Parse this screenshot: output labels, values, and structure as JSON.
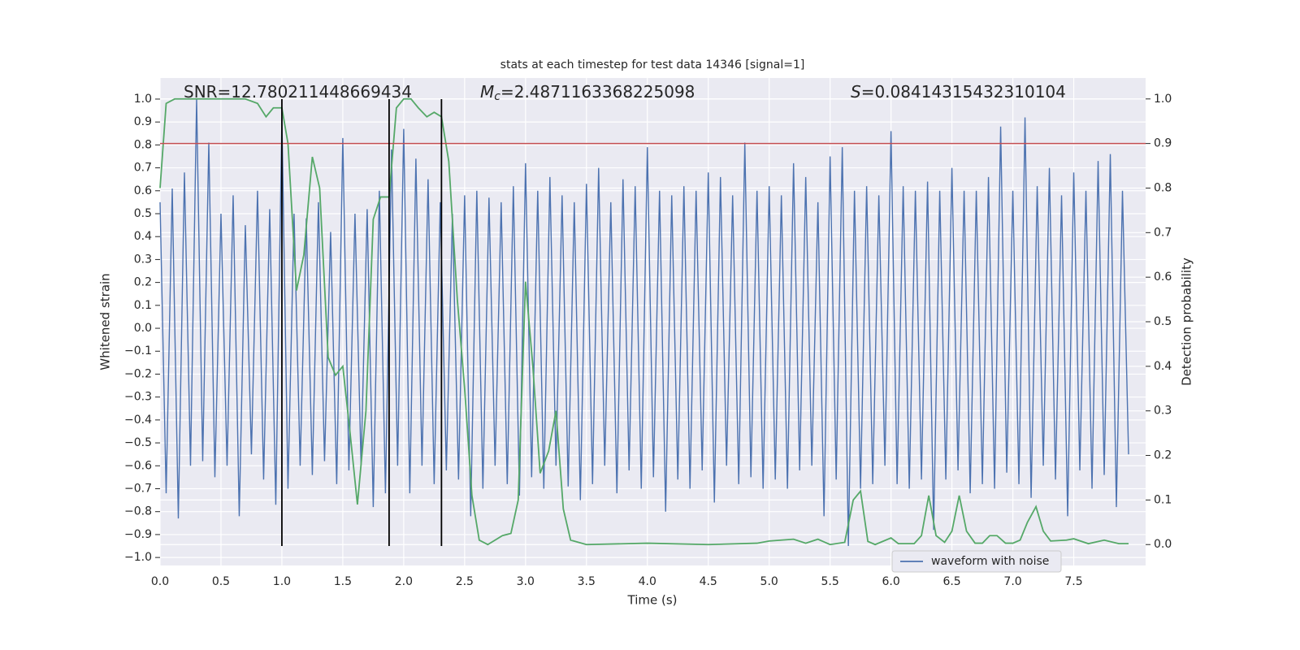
{
  "chart_data": {
    "type": "line",
    "title": "stats at each timestep for test data 14346 [signal=1]",
    "xlabel": "Time (s)",
    "ylabel": "Whitened strain",
    "y2label": "Detection probability",
    "xlim": [
      0,
      8.09
    ],
    "ylim": [
      -1.035,
      1.092
    ],
    "y2lim": [
      -0.047,
      1.047
    ],
    "xticks": [
      {
        "value": 0,
        "label": "0.0"
      },
      0.5,
      {
        "value": 1,
        "label": "1.0"
      },
      1.5,
      {
        "value": 2,
        "label": "2.0"
      },
      2.5,
      {
        "value": 3,
        "label": "3.0"
      },
      3.5,
      {
        "value": 4,
        "label": "4.0"
      },
      4.5,
      {
        "value": 5,
        "label": "5.0"
      },
      5.5,
      {
        "value": 6,
        "label": "6.0"
      },
      6.5,
      {
        "value": 7,
        "label": "7.0"
      },
      7.5
    ],
    "yticks": [
      {
        "value": -1,
        "label": "−1.0"
      },
      {
        "value": -0.9,
        "label": "−0.9"
      },
      {
        "value": -0.8,
        "label": "−0.8"
      },
      {
        "value": -0.7,
        "label": "−0.7"
      },
      {
        "value": -0.6,
        "label": "−0.6"
      },
      {
        "value": -0.5,
        "label": "−0.5"
      },
      {
        "value": -0.4,
        "label": "−0.4"
      },
      {
        "value": -0.3,
        "label": "−0.3"
      },
      {
        "value": -0.2,
        "label": "−0.2"
      },
      {
        "value": -0.1,
        "label": "−0.1"
      },
      {
        "value": 0,
        "label": "0.0"
      },
      0.1,
      0.2,
      0.3,
      0.4,
      0.5,
      0.6,
      0.7,
      0.8,
      0.9,
      {
        "value": 1,
        "label": "1.0"
      }
    ],
    "y2ticks": [
      {
        "value": 0,
        "label": "0.0"
      },
      0.1,
      0.2,
      0.3,
      0.4,
      0.5,
      0.6,
      0.7,
      0.8,
      0.9,
      {
        "value": 1,
        "label": "1.0"
      }
    ],
    "grid": true,
    "legend": "lower right",
    "annotations": [
      {
        "text": "SNR=12.780211448669434"
      },
      {
        "symbol": "M",
        "subscript": "c",
        "text": "=2.4871163368225098"
      },
      {
        "symbol": "S",
        "text": "=0.08414315432310104"
      }
    ],
    "series": [
      {
        "name": "waveform with noise",
        "color": "#4c72b0",
        "x": [
          0,
          0.05,
          0.1,
          0.15,
          0.2,
          0.25,
          0.3,
          0.35,
          0.4,
          0.45,
          0.5,
          0.55,
          0.6,
          0.65,
          0.7,
          0.75,
          0.8,
          0.85,
          0.9,
          0.95,
          1,
          1.05,
          1.1,
          1.15,
          1.2,
          1.25,
          1.3,
          1.35,
          1.4,
          1.45,
          1.5,
          1.55,
          1.6,
          1.65,
          1.7,
          1.75,
          1.8,
          1.85,
          1.9,
          1.95,
          2,
          2.05,
          2.1,
          2.15,
          2.2,
          2.25,
          2.3,
          2.35,
          2.4,
          2.45,
          2.5,
          2.55,
          2.6,
          2.65,
          2.7,
          2.75,
          2.8,
          2.85,
          2.9,
          2.95,
          3,
          3.05,
          3.1,
          3.15,
          3.2,
          3.25,
          3.3,
          3.35,
          3.4,
          3.45,
          3.5,
          3.55,
          3.6,
          3.65,
          3.7,
          3.75,
          3.8,
          3.85,
          3.9,
          3.95,
          4,
          4.05,
          4.1,
          4.15,
          4.2,
          4.25,
          4.3,
          4.35,
          4.4,
          4.45,
          4.5,
          4.55,
          4.6,
          4.65,
          4.7,
          4.75,
          4.8,
          4.85,
          4.9,
          4.95,
          5,
          5.05,
          5.1,
          5.15,
          5.2,
          5.25,
          5.3,
          5.35,
          5.4,
          5.45,
          5.5,
          5.55,
          5.6,
          5.65,
          5.7,
          5.75,
          5.8,
          5.85,
          5.9,
          5.95,
          6,
          6.05,
          6.1,
          6.15,
          6.2,
          6.25,
          6.3,
          6.35,
          6.4,
          6.45,
          6.5,
          6.55,
          6.6,
          6.65,
          6.7,
          6.75,
          6.8,
          6.85,
          6.9,
          6.95,
          7,
          7.05,
          7.1,
          7.15,
          7.2,
          7.25,
          7.3,
          7.35,
          7.4,
          7.45,
          7.5,
          7.55,
          7.6,
          7.65,
          7.7,
          7.75,
          7.8,
          7.85,
          7.9,
          7.95
        ],
        "values": [
          0.55,
          -0.72,
          0.61,
          -0.83,
          0.68,
          -0.6,
          1.0,
          -0.58,
          0.81,
          -0.65,
          0.5,
          -0.6,
          0.58,
          -0.82,
          0.45,
          -0.55,
          0.6,
          -0.66,
          0.52,
          -0.77,
          0.92,
          -0.7,
          0.5,
          -0.6,
          0.48,
          -0.64,
          0.55,
          -0.58,
          0.42,
          -0.68,
          0.83,
          -0.62,
          0.5,
          -0.6,
          0.52,
          -0.78,
          0.6,
          -0.72,
          0.78,
          -0.6,
          0.87,
          -0.72,
          0.74,
          -0.6,
          0.65,
          -0.68,
          0.55,
          -0.62,
          0.5,
          -0.66,
          0.58,
          -0.82,
          0.6,
          -0.7,
          0.57,
          -0.6,
          0.55,
          -0.68,
          0.62,
          -0.73,
          0.72,
          -0.65,
          0.6,
          -0.7,
          0.66,
          -0.6,
          0.58,
          -0.69,
          0.55,
          -0.75,
          0.63,
          -0.68,
          0.7,
          -0.6,
          0.55,
          -0.72,
          0.65,
          -0.62,
          0.62,
          -0.7,
          0.79,
          -0.65,
          0.6,
          -0.8,
          0.58,
          -0.66,
          0.62,
          -0.7,
          0.6,
          -0.62,
          0.68,
          -0.76,
          0.66,
          -0.6,
          0.58,
          -0.68,
          0.81,
          -0.65,
          0.6,
          -0.7,
          0.62,
          -0.66,
          0.58,
          -0.7,
          0.72,
          -0.62,
          0.66,
          -0.6,
          0.55,
          -0.82,
          0.75,
          -0.66,
          0.79,
          -0.95,
          0.6,
          -0.7,
          0.62,
          -0.68,
          0.58,
          -0.6,
          0.86,
          -0.68,
          0.62,
          -0.7,
          0.6,
          -0.66,
          0.64,
          -0.88,
          0.6,
          -0.66,
          0.7,
          -0.62,
          0.6,
          -0.72,
          0.6,
          -0.68,
          0.66,
          -0.7,
          0.88,
          -0.63,
          0.6,
          -0.68,
          0.92,
          -0.74,
          0.62,
          -0.6,
          0.7,
          -0.66,
          0.58,
          -0.82,
          0.68,
          -0.62,
          0.6,
          -0.7,
          0.73,
          -0.64,
          0.76,
          -0.78,
          0.6,
          -0.55
        ]
      },
      {
        "color": "#55a868",
        "axis": "y2",
        "x": [
          0,
          0.05,
          0.12,
          0.3,
          0.5,
          0.7,
          0.8,
          0.87,
          0.93,
          1,
          1.05,
          1.12,
          1.18,
          1.25,
          1.31,
          1.38,
          1.44,
          1.5,
          1.56,
          1.62,
          1.69,
          1.75,
          1.81,
          1.88,
          1.94,
          2,
          2.06,
          2.12,
          2.19,
          2.25,
          2.31,
          2.37,
          2.44,
          2.5,
          2.56,
          2.62,
          2.69,
          2.75,
          2.81,
          2.88,
          2.94,
          3,
          3.06,
          3.12,
          3.19,
          3.25,
          3.31,
          3.37,
          3.5,
          4,
          4.5,
          4.9,
          5,
          5.2,
          5.3,
          5.4,
          5.5,
          5.62,
          5.69,
          5.75,
          5.81,
          5.87,
          6,
          6.06,
          6.19,
          6.25,
          6.31,
          6.37,
          6.44,
          6.5,
          6.56,
          6.62,
          6.69,
          6.75,
          6.81,
          6.87,
          6.94,
          7,
          7.06,
          7.12,
          7.19,
          7.25,
          7.31,
          7.44,
          7.5,
          7.62,
          7.75,
          7.87,
          7.95
        ],
        "values": [
          0.8,
          0.99,
          1,
          1,
          1,
          1,
          0.99,
          0.96,
          0.98,
          0.98,
          0.9,
          0.57,
          0.65,
          0.87,
          0.8,
          0.42,
          0.38,
          0.4,
          0.25,
          0.09,
          0.3,
          0.73,
          0.78,
          0.78,
          0.98,
          1,
          1,
          0.98,
          0.96,
          0.97,
          0.96,
          0.86,
          0.55,
          0.35,
          0.11,
          0.01,
          0,
          0.01,
          0.02,
          0.025,
          0.1,
          0.59,
          0.4,
          0.16,
          0.21,
          0.3,
          0.08,
          0.01,
          0,
          0.003,
          0,
          0.003,
          0.008,
          0.012,
          0.003,
          0.012,
          0,
          0.005,
          0.1,
          0.12,
          0.007,
          0,
          0.015,
          0.002,
          0.002,
          0.02,
          0.11,
          0.02,
          0.005,
          0.03,
          0.11,
          0.03,
          0.003,
          0.003,
          0.02,
          0.02,
          0.003,
          0.003,
          0.01,
          0.05,
          0.085,
          0.03,
          0.008,
          0.01,
          0.013,
          0.002,
          0.01,
          0.002,
          0.002
        ]
      }
    ],
    "hlines": [
      {
        "value": 0.9,
        "axis": "y2",
        "color": "#c44e52"
      }
    ],
    "vlines": {
      "x": [
        1.0,
        1.88,
        2.31
      ],
      "ymin": -0.95,
      "ymax": 1.0,
      "color": "#000000"
    }
  }
}
